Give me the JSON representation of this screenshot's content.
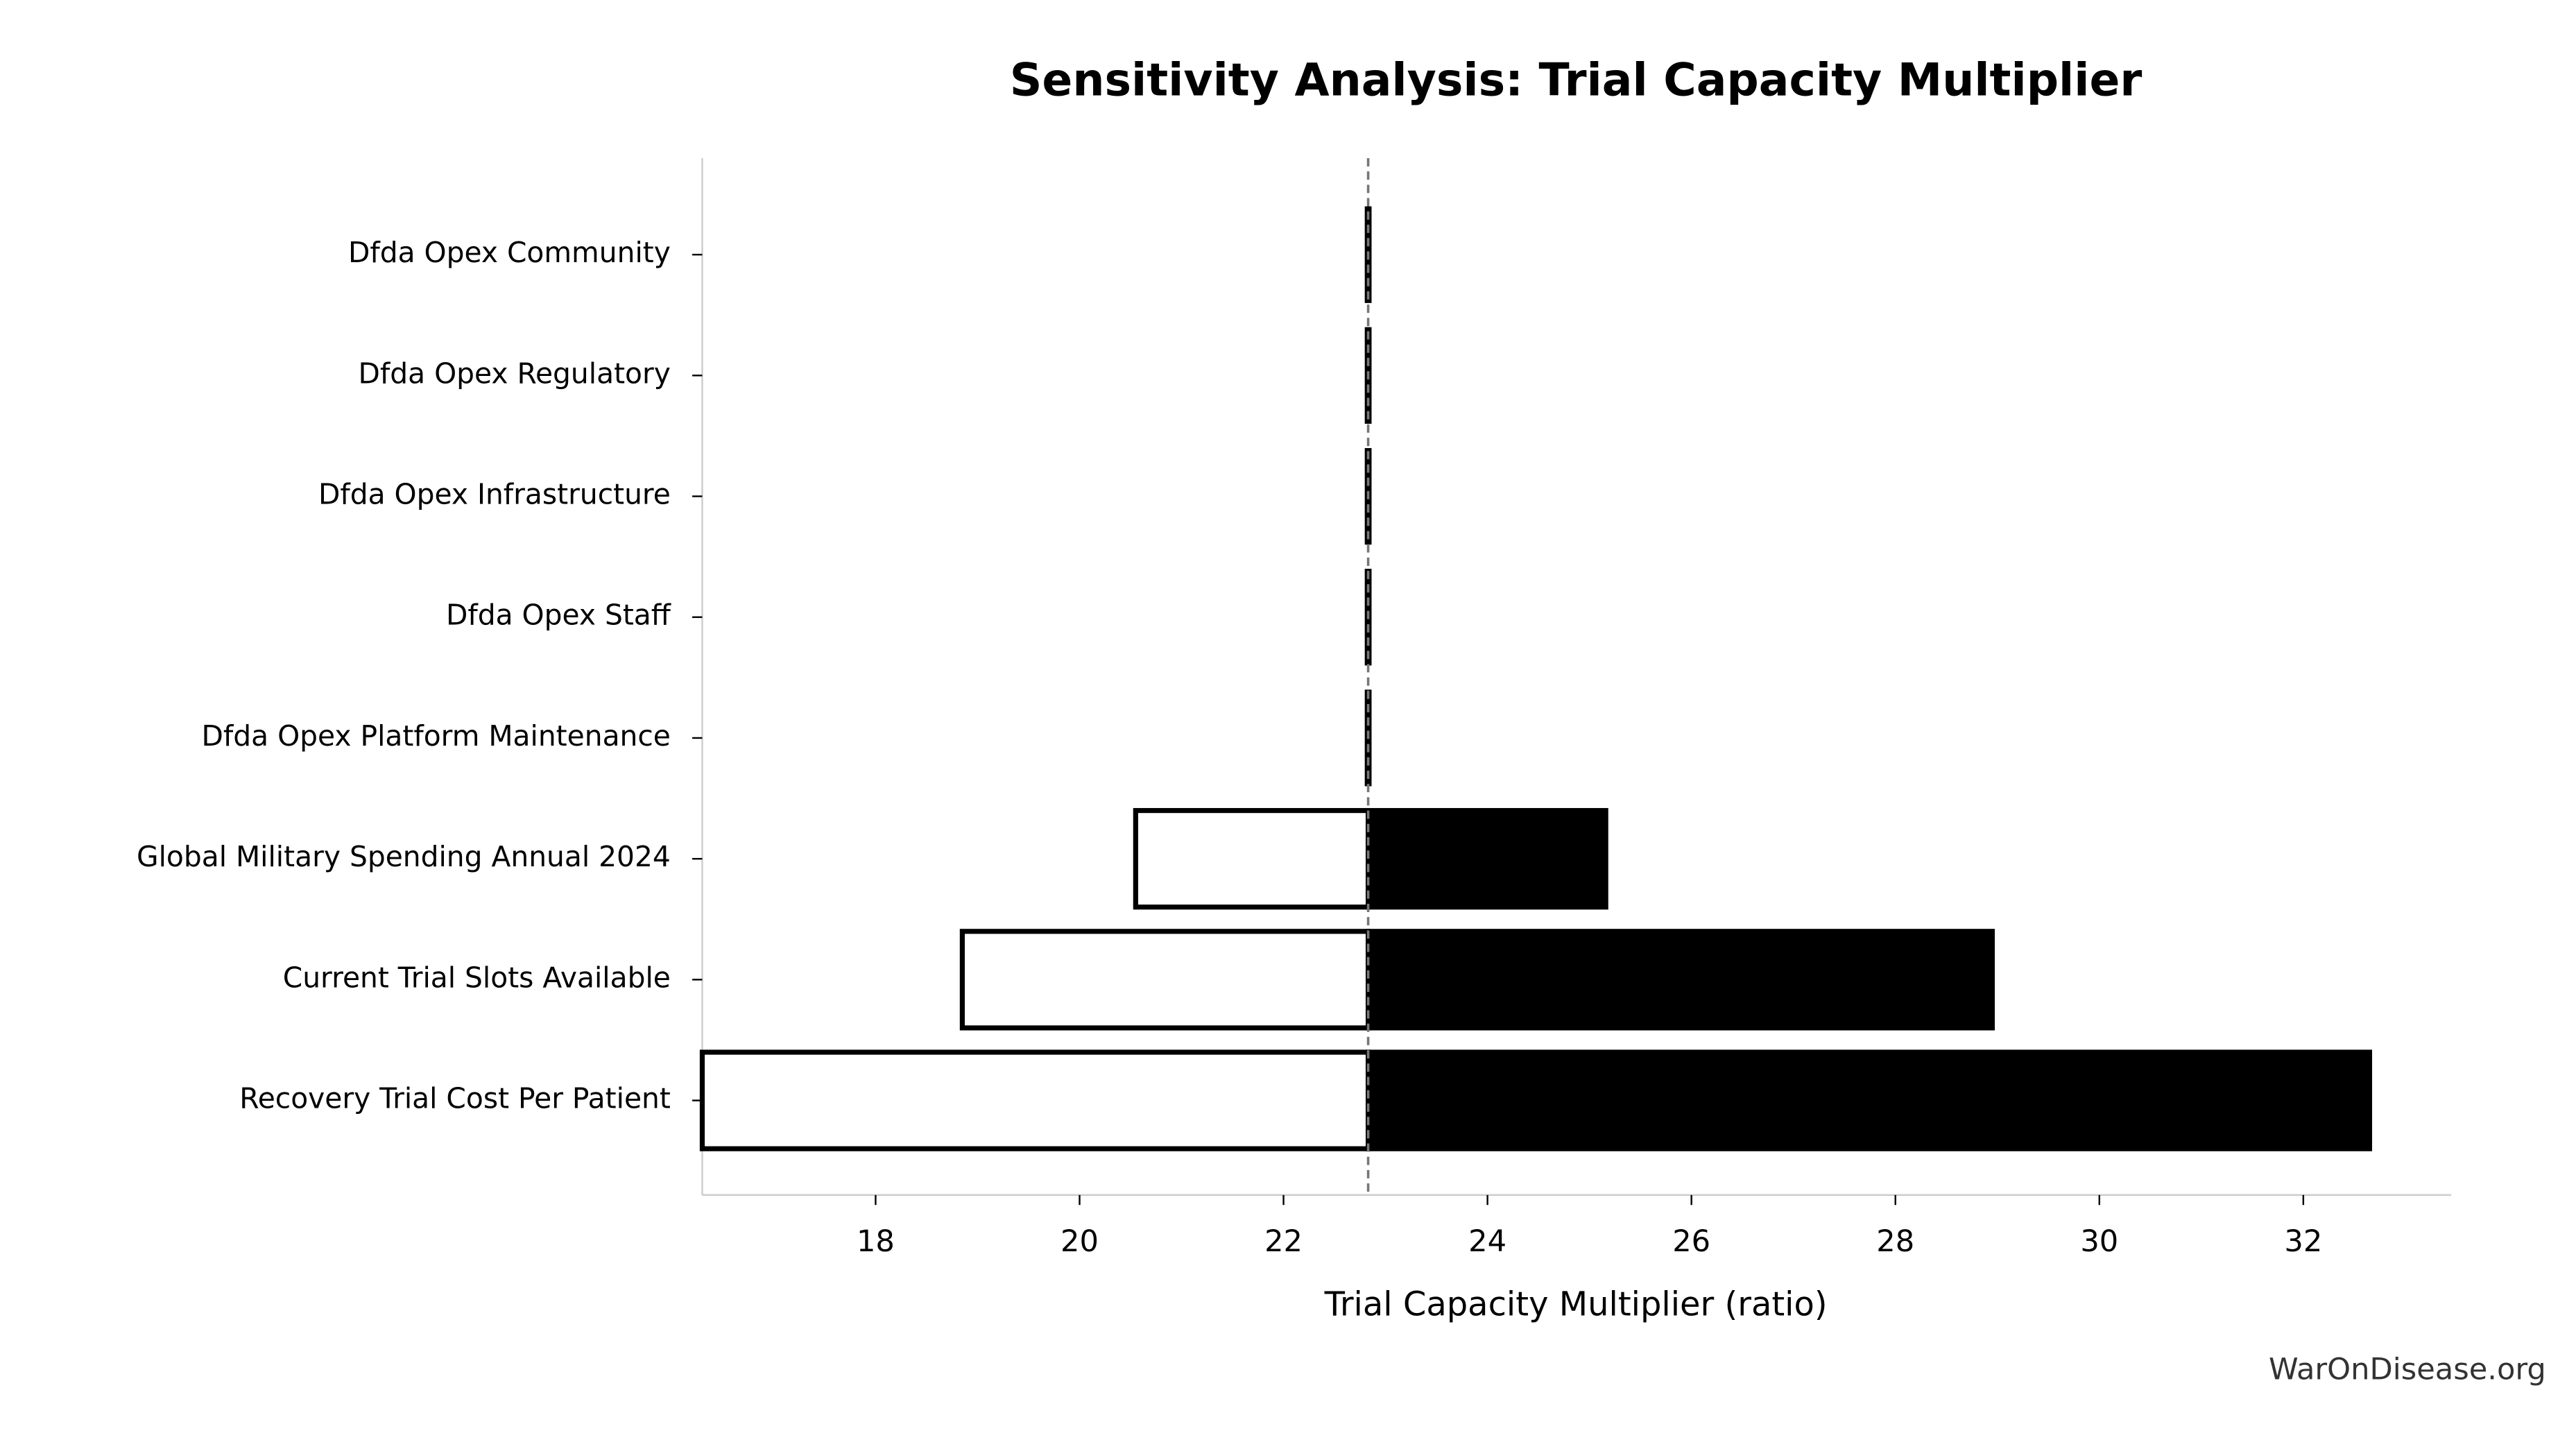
{
  "chart_data": {
    "type": "tornado",
    "title": "Sensitivity Analysis: Trial Capacity Multiplier",
    "xlabel": "Trial Capacity Multiplier (ratio)",
    "source": "WarOnDisease.org",
    "categories": [
      "Dfda Opex Community",
      "Dfda Opex Regulatory",
      "Dfda Opex Infrastructure",
      "Dfda Opex Staff",
      "Dfda Opex Platform Maintenance",
      "Global Military Spending Annual 2024",
      "Current Trial Slots Available",
      "Recovery Trial Cost Per Patient"
    ],
    "baseline": 22.83,
    "low": [
      22.83,
      22.83,
      22.83,
      22.83,
      22.83,
      20.55,
      18.85,
      16.3
    ],
    "high": [
      22.83,
      22.83,
      22.83,
      22.83,
      22.83,
      25.16,
      28.95,
      32.65
    ],
    "low_color": "#ffffff",
    "high_color": "#000000",
    "xlim": [
      16.3,
      33.45
    ],
    "xticks": [
      18,
      20,
      22,
      24,
      26,
      28,
      30,
      32
    ]
  }
}
